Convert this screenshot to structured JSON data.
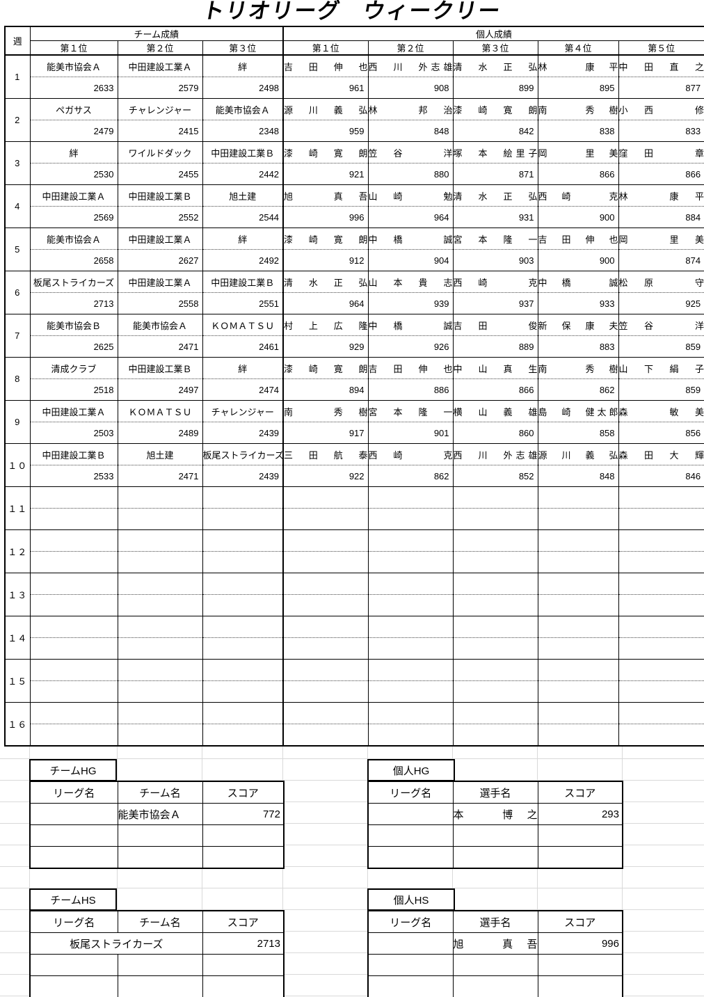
{
  "title": "トリオリーグ　ウィークリー",
  "table": {
    "week_col_header": "週",
    "sections": [
      {
        "label": "チーム成績",
        "rank_headers": [
          "第１位",
          "第２位",
          "第３位"
        ]
      },
      {
        "label": "個人成績",
        "rank_headers": [
          "第１位",
          "第２位",
          "第３位",
          "第４位",
          "第５位"
        ]
      }
    ],
    "weeks": [
      {
        "no": "1",
        "teams": [
          [
            "能美市協会Ａ",
            "2633"
          ],
          [
            "中田建設工業Ａ",
            "2579"
          ],
          [
            "絆",
            "2498"
          ]
        ],
        "players": [
          [
            "吉　田　伸　也",
            "961"
          ],
          [
            "西　川　外志雄",
            "908"
          ],
          [
            "清　水　正　弘",
            "899"
          ],
          [
            "林　　　康　平",
            "895"
          ],
          [
            "中　田　直　之",
            "877"
          ]
        ]
      },
      {
        "no": "2",
        "teams": [
          [
            "ペガサス",
            "2479"
          ],
          [
            "チャレンジャー",
            "2415"
          ],
          [
            "能美市協会Ａ",
            "2348"
          ]
        ],
        "players": [
          [
            "源　川　義　弘",
            "959"
          ],
          [
            "林　　　邦　治",
            "848"
          ],
          [
            "漆　崎　寛　朗",
            "842"
          ],
          [
            "南　　　秀　樹",
            "838"
          ],
          [
            "小　西　　　修",
            "833"
          ]
        ]
      },
      {
        "no": "3",
        "teams": [
          [
            "絆",
            "2530"
          ],
          [
            "ワイルドダック",
            "2455"
          ],
          [
            "中田建設工業Ｂ",
            "2442"
          ]
        ],
        "players": [
          [
            "漆　崎　寛　朗",
            "921"
          ],
          [
            "笠　谷　　　洋",
            "880"
          ],
          [
            "塚　本　絵里子",
            "871"
          ],
          [
            "岡　　　里　美",
            "866"
          ],
          [
            "窪　田　　　章",
            "866"
          ]
        ]
      },
      {
        "no": "4",
        "teams": [
          [
            "中田建設工業Ａ",
            "2569"
          ],
          [
            "中田建設工業Ｂ",
            "2552"
          ],
          [
            "旭土建",
            "2544"
          ]
        ],
        "players": [
          [
            "旭　　　真　吾",
            "996"
          ],
          [
            "山　崎　　　勉",
            "964"
          ],
          [
            "清　水　正　弘",
            "931"
          ],
          [
            "西　崎　　　克",
            "900"
          ],
          [
            "林　　　康　平",
            "884"
          ]
        ]
      },
      {
        "no": "5",
        "teams": [
          [
            "能美市協会Ａ",
            "2658"
          ],
          [
            "中田建設工業Ａ",
            "2627"
          ],
          [
            "絆",
            "2492"
          ]
        ],
        "players": [
          [
            "漆　崎　寛　朗",
            "912"
          ],
          [
            "中　橋　　　誠",
            "904"
          ],
          [
            "宮　本　隆　一",
            "903"
          ],
          [
            "吉　田　伸　也",
            "900"
          ],
          [
            "岡　　　里　美",
            "874"
          ]
        ]
      },
      {
        "no": "6",
        "teams": [
          [
            "板尾ストライカーズ",
            "2713"
          ],
          [
            "中田建設工業Ａ",
            "2558"
          ],
          [
            "中田建設工業Ｂ",
            "2551"
          ]
        ],
        "players": [
          [
            "清　水　正　弘",
            "964"
          ],
          [
            "山　本　貴　志",
            "939"
          ],
          [
            "西　崎　　　克",
            "937"
          ],
          [
            "中　橋　　　誠",
            "933"
          ],
          [
            "松　原　　　守",
            "925"
          ]
        ]
      },
      {
        "no": "7",
        "teams": [
          [
            "能美市協会Ｂ",
            "2625"
          ],
          [
            "能美市協会Ａ",
            "2471"
          ],
          [
            "ＫＯＭＡＴＳＵ",
            "2461"
          ]
        ],
        "players": [
          [
            "村　上　広　隆",
            "929"
          ],
          [
            "中　橋　　　誠",
            "926"
          ],
          [
            "吉　田　　　俊",
            "889"
          ],
          [
            "新　保　康　夫",
            "883"
          ],
          [
            "笠　谷　　　洋",
            "859"
          ]
        ]
      },
      {
        "no": "8",
        "teams": [
          [
            "清成クラブ",
            "2518"
          ],
          [
            "中田建設工業Ｂ",
            "2497"
          ],
          [
            "絆",
            "2474"
          ]
        ],
        "players": [
          [
            "漆　崎　寛　朗",
            "894"
          ],
          [
            "吉　田　伸　也",
            "886"
          ],
          [
            "中　山　真　生",
            "866"
          ],
          [
            "南　　　秀　樹",
            "862"
          ],
          [
            "山　下　絹　子",
            "859"
          ]
        ]
      },
      {
        "no": "9",
        "teams": [
          [
            "中田建設工業Ａ",
            "2503"
          ],
          [
            "ＫＯＭＡＴＳＵ",
            "2489"
          ],
          [
            "チャレンジャー",
            "2439"
          ]
        ],
        "players": [
          [
            "南　　　秀　樹",
            "917"
          ],
          [
            "宮　本　隆　一",
            "901"
          ],
          [
            "横　山　義　雄",
            "860"
          ],
          [
            "島　崎　健太郎",
            "858"
          ],
          [
            "森　　　敏　美",
            "856"
          ]
        ]
      },
      {
        "no": "１０",
        "teams": [
          [
            "中田建設工業Ｂ",
            "2533"
          ],
          [
            "旭土建",
            "2471"
          ],
          [
            "板尾ストライカーズ",
            "2439"
          ]
        ],
        "players": [
          [
            "三　田　航　泰",
            "922"
          ],
          [
            "西　崎　　　克",
            "862"
          ],
          [
            "西　川　外志雄",
            "852"
          ],
          [
            "源　川　義　弘",
            "848"
          ],
          [
            "森　田　大　輝",
            "846"
          ]
        ]
      },
      {
        "no": "１１",
        "teams": [
          [
            "",
            ""
          ],
          [
            "",
            ""
          ],
          [
            "",
            ""
          ]
        ],
        "players": [
          [
            "",
            ""
          ],
          [
            "",
            ""
          ],
          [
            "",
            ""
          ],
          [
            "",
            ""
          ],
          [
            "",
            ""
          ]
        ]
      },
      {
        "no": "１２",
        "teams": [
          [
            "",
            ""
          ],
          [
            "",
            ""
          ],
          [
            "",
            ""
          ]
        ],
        "players": [
          [
            "",
            ""
          ],
          [
            "",
            ""
          ],
          [
            "",
            ""
          ],
          [
            "",
            ""
          ],
          [
            "",
            ""
          ]
        ]
      },
      {
        "no": "１３",
        "teams": [
          [
            "",
            ""
          ],
          [
            "",
            ""
          ],
          [
            "",
            ""
          ]
        ],
        "players": [
          [
            "",
            ""
          ],
          [
            "",
            ""
          ],
          [
            "",
            ""
          ],
          [
            "",
            ""
          ],
          [
            "",
            ""
          ]
        ]
      },
      {
        "no": "１４",
        "teams": [
          [
            "",
            ""
          ],
          [
            "",
            ""
          ],
          [
            "",
            ""
          ]
        ],
        "players": [
          [
            "",
            ""
          ],
          [
            "",
            ""
          ],
          [
            "",
            ""
          ],
          [
            "",
            ""
          ],
          [
            "",
            ""
          ]
        ]
      },
      {
        "no": "１５",
        "teams": [
          [
            "",
            ""
          ],
          [
            "",
            ""
          ],
          [
            "",
            ""
          ]
        ],
        "players": [
          [
            "",
            ""
          ],
          [
            "",
            ""
          ],
          [
            "",
            ""
          ],
          [
            "",
            ""
          ],
          [
            "",
            ""
          ]
        ]
      },
      {
        "no": "１６",
        "teams": [
          [
            "",
            ""
          ],
          [
            "",
            ""
          ],
          [
            "",
            ""
          ]
        ],
        "players": [
          [
            "",
            ""
          ],
          [
            "",
            ""
          ],
          [
            "",
            ""
          ],
          [
            "",
            ""
          ],
          [
            "",
            ""
          ]
        ]
      }
    ]
  },
  "summaries": {
    "team_hg": {
      "title": "チームHG",
      "headers": [
        "リーグ名",
        "チーム名",
        "スコア"
      ],
      "rows": [
        [
          "",
          "能美市協会Ａ",
          "772"
        ],
        [
          "",
          "",
          ""
        ],
        [
          "",
          "",
          ""
        ]
      ]
    },
    "individual_hg": {
      "title": "個人HG",
      "headers": [
        "リーグ名",
        "選手名",
        "スコア"
      ],
      "rows": [
        [
          "",
          "本　　　博　之",
          "293"
        ],
        [
          "",
          "",
          ""
        ],
        [
          "",
          "",
          ""
        ]
      ]
    },
    "team_hs": {
      "title": "チームHS",
      "headers": [
        "リーグ名",
        "チーム名",
        "スコア"
      ],
      "rows": [
        [
          "",
          "板尾ストライカーズ",
          "2713"
        ],
        [
          "",
          "",
          ""
        ],
        [
          "",
          "",
          ""
        ]
      ]
    },
    "individual_hs": {
      "title": "個人HS",
      "headers": [
        "リーグ名",
        "選手名",
        "スコア"
      ],
      "rows": [
        [
          "",
          "旭　　　真　吾",
          "996"
        ],
        [
          "",
          "",
          ""
        ],
        [
          "",
          "",
          ""
        ]
      ]
    }
  },
  "colors": {
    "border": "#000000",
    "faint_grid": "#d9d9d9",
    "background": "#ffffff"
  }
}
